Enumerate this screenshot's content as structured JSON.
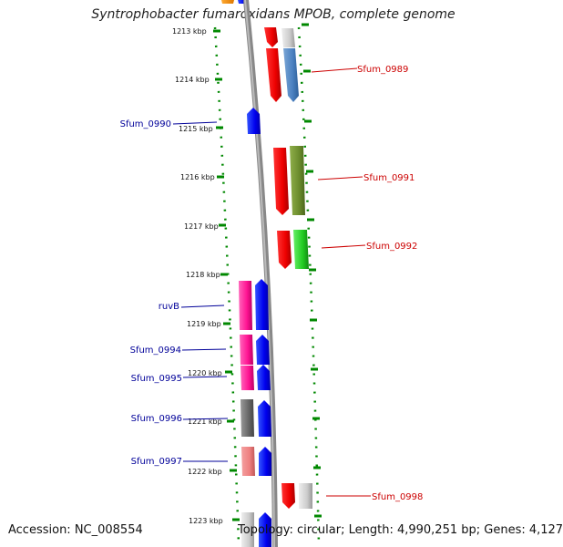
{
  "header": {
    "title": "Syntrophobacter fumaroxidans MPOB, complete genome"
  },
  "footer": {
    "accession": "Accession: NC_008554",
    "topology": "Topology: circular; Length: 4,990,251 bp; Genes: 4,127"
  },
  "colors": {
    "forward_label": "#cc0000",
    "reverse_label": "#000099",
    "ticks": "#008800",
    "backbone": "#888888"
  },
  "axis": {
    "unit": "kbp",
    "ticks": [
      {
        "kbp": 1213,
        "label": "1213 kbp"
      },
      {
        "kbp": 1214,
        "label": "1214 kbp"
      },
      {
        "kbp": 1215,
        "label": "1215 kbp"
      },
      {
        "kbp": 1216,
        "label": "1216 kbp"
      },
      {
        "kbp": 1217,
        "label": "1217 kbp"
      },
      {
        "kbp": 1218,
        "label": "1218 kbp"
      },
      {
        "kbp": 1219,
        "label": "1219 kbp"
      },
      {
        "kbp": 1220,
        "label": "1220 kbp"
      },
      {
        "kbp": 1221,
        "label": "1221 kbp"
      },
      {
        "kbp": 1222,
        "label": "1222 kbp"
      },
      {
        "kbp": 1223,
        "label": "1223 kbp"
      }
    ]
  },
  "gene_labels": [
    {
      "name": "Sfum_0989",
      "strand": "forward",
      "kbp": 1213.8
    },
    {
      "name": "Sfum_0990",
      "strand": "reverse",
      "kbp": 1214.9
    },
    {
      "name": "Sfum_0991",
      "strand": "forward",
      "kbp": 1216.0
    },
    {
      "name": "Sfum_0992",
      "strand": "forward",
      "kbp": 1217.4
    },
    {
      "name": "ruvB",
      "strand": "reverse",
      "kbp": 1218.66
    },
    {
      "name": "Sfum_0994",
      "strand": "reverse",
      "kbp": 1219.53
    },
    {
      "name": "Sfum_0995",
      "strand": "reverse",
      "kbp": 1220.1
    },
    {
      "name": "Sfum_0996",
      "strand": "reverse",
      "kbp": 1220.93
    },
    {
      "name": "Sfum_0997",
      "strand": "reverse",
      "kbp": 1221.87
    },
    {
      "name": "Sfum_0998",
      "strand": "forward",
      "kbp": 1222.52
    }
  ]
}
